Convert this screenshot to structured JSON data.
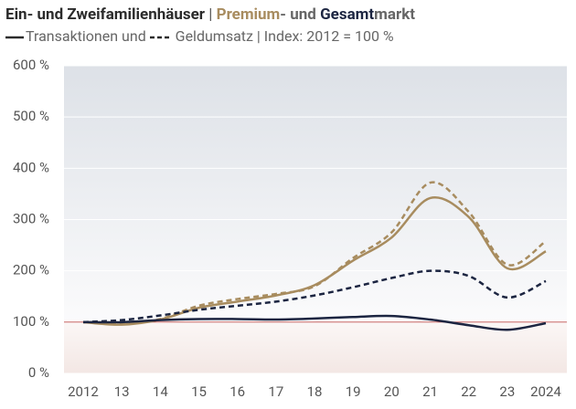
{
  "chart_data": {
    "type": "line",
    "title_parts": [
      "Ein- und Zweifamilienhäuser",
      "|",
      "Premium",
      "- und",
      "Gesamt",
      "markt"
    ],
    "subtitle_parts": [
      "Transaktionen und",
      "Geldumsatz | Index: 2012 = 100 %"
    ],
    "categories": [
      "2012",
      "13",
      "14",
      "15",
      "16",
      "17",
      "18",
      "19",
      "20",
      "21",
      "22",
      "23",
      "2024"
    ],
    "series": [
      {
        "color": "#a88c5f",
        "dash": false,
        "values": [
          100,
          95,
          105,
          128,
          140,
          152,
          172,
          220,
          265,
          342,
          305,
          205,
          238
        ]
      },
      {
        "color": "#a88c5f",
        "dash": true,
        "values": [
          100,
          96,
          106,
          132,
          145,
          155,
          170,
          225,
          275,
          372,
          315,
          212,
          258
        ]
      },
      {
        "color": "#1c2541",
        "dash": true,
        "values": [
          100,
          104,
          113,
          124,
          132,
          140,
          152,
          168,
          186,
          200,
          190,
          148,
          180
        ]
      },
      {
        "color": "#1c2541",
        "dash": false,
        "values": [
          100,
          100,
          104,
          106,
          106,
          105,
          107,
          110,
          112,
          105,
          94,
          85,
          98
        ]
      }
    ],
    "ylim": [
      0,
      600
    ],
    "yticks": [
      {
        "value": 0,
        "label": "0 %"
      },
      {
        "value": 100,
        "label": "100 %"
      },
      {
        "value": 200,
        "label": "200 %"
      },
      {
        "value": 300,
        "label": "300 %"
      },
      {
        "value": 400,
        "label": "400 %"
      },
      {
        "value": 500,
        "label": "500 %"
      },
      {
        "value": 600,
        "label": "600 %"
      }
    ],
    "grid": true
  }
}
